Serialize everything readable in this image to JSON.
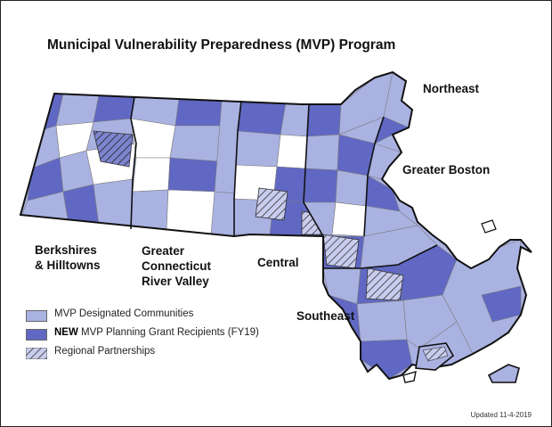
{
  "title": "Municipal Vulnerability Preparedness (MVP) Program",
  "colors": {
    "designated": "#aab2e2",
    "grant_recipient": "#6068c4",
    "not_participating": "#ffffff",
    "boundary": "#111111",
    "town_line": "#7a7a7a"
  },
  "regions": {
    "northeast": "Northeast",
    "greater_boston": "Greater Boston",
    "berkshires": [
      "Berkshires",
      "& Hilltowns"
    ],
    "connecticut_river": [
      "Greater",
      "Connecticut",
      "River Valley"
    ],
    "central": "Central",
    "southeast": "Southeast"
  },
  "legend": {
    "designated": "MVP Designated Communities",
    "grant_new": "NEW",
    "grant_rest": " MVP Planning Grant Recipients (FY19)",
    "partnerships": "Regional Partnerships"
  },
  "updated": "Updated 11-4-2019"
}
